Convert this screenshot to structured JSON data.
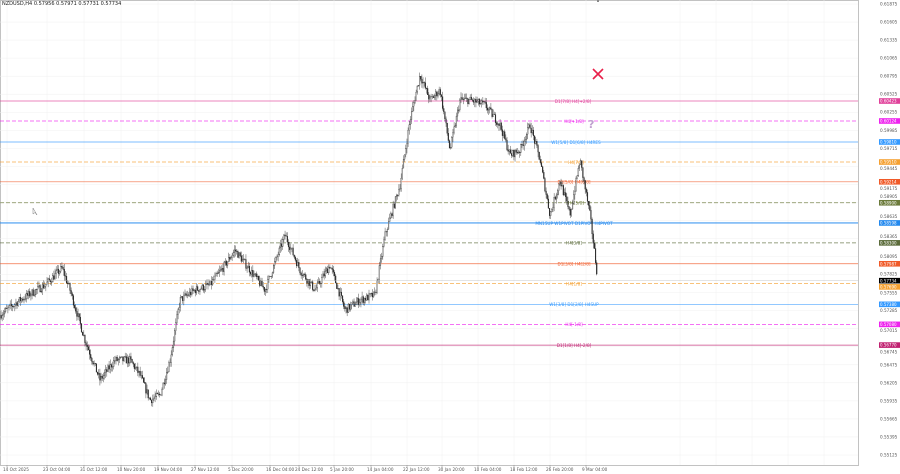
{
  "header": {
    "title": "NZDUSD,H4 0.57956 0.57971 0.57731 0.57734"
  },
  "chart_data": {
    "type": "candlestick",
    "symbol": "NZDUSD",
    "timeframe": "H4",
    "ohlc_last": {
      "open": 0.57956,
      "high": 0.57971,
      "low": 0.57731,
      "close": 0.57734
    },
    "ylim": [
      0.55125,
      0.61875
    ],
    "y_ticks": [
      "0.61875",
      "0.61605",
      "0.61335",
      "0.61065",
      "0.60795",
      "0.60525",
      "0.60255",
      "0.59985",
      "0.59715",
      "0.59445",
      "0.59175",
      "0.58905",
      "0.58635",
      "0.58365",
      "0.58095",
      "0.57825",
      "0.57555",
      "0.57285",
      "0.57015",
      "0.56745",
      "0.56475",
      "0.56205",
      "0.55935",
      "0.55665",
      "0.55395",
      "0.55125"
    ],
    "x_ticks": [
      "14 Oct 2025",
      "23 Oct 04:00",
      "31 Oct 12:00",
      "10 Nov 20:00",
      "19 Nov 04:00",
      "27 Nov 12:00",
      "5 Dec 20:00",
      "16 Dec 04:00",
      "24 Dec 12:00",
      "5 Jan 20:00",
      "14 Jan 04:00",
      "22 Jan 12:00",
      "30 Jan 20:00",
      "10 Feb 04:00",
      "18 Feb 12:00",
      "26 Feb 20:00",
      "9 Mar 04:00"
    ],
    "approx_close_path": [
      0.57219,
      0.57444,
      0.57668,
      0.57923,
      0.57594,
      0.56845,
      0.56246,
      0.56545,
      0.56545,
      0.56321,
      0.55947,
      0.56022,
      0.56545,
      0.57444,
      0.57594,
      0.57668,
      0.57968,
      0.58192,
      0.57893,
      0.57594,
      0.58417,
      0.57893,
      0.57594,
      0.57968,
      0.57294,
      0.57444,
      0.57519,
      0.58417,
      0.59165,
      0.60138,
      0.60812,
      0.60438,
      0.60588,
      0.59689,
      0.60438,
      0.60438,
      0.60363,
      0.60064,
      0.59615,
      0.59689,
      0.60064,
      0.5954,
      0.58716,
      0.5924,
      0.58716,
      0.5954,
      0.58716,
      0.57734
    ],
    "current_price": {
      "value": "0.57734",
      "color": "#000000"
    },
    "levels": [
      {
        "label": "D1[7/8] H4[+2/8]",
        "price": "0.60423",
        "color": "#e0409a",
        "style": "solid"
      },
      {
        "label": "H4[+1/8]",
        "price": "0.60124",
        "color": "#ee22ee",
        "style": "dashed"
      },
      {
        "label": "W1[5/8] D1[6/8] H4RES",
        "price": "0.59810",
        "color": "#3399ff",
        "style": "solid"
      },
      {
        "label": "H4[7/8]",
        "price": "0.59510",
        "color": "#f5a030",
        "style": "dashed"
      },
      {
        "label": "D1[5/8] H4[6/8]",
        "price": "0.59214",
        "color": "#f05a28",
        "style": "solid"
      },
      {
        "label": "H4[5/8]",
        "price": "0.58900",
        "color": "#6b7a3a",
        "style": "dashed"
      },
      {
        "label": "MN1SUP W1PIVOT D1PIVOT H4PIVOT",
        "price": "0.58598",
        "color": "#2288ee",
        "style": "solid"
      },
      {
        "label": "H4[3/8]",
        "price": "0.58300",
        "color": "#5b6b3a",
        "style": "dashed"
      },
      {
        "label": "D1[3/8] H4[2/8]",
        "price": "0.57987",
        "color": "#f05a28",
        "style": "solid"
      },
      {
        "label": "H4[1/8]",
        "price": "0.57690",
        "color": "#f5a030",
        "style": "dashed"
      },
      {
        "label": "W1[3/8] D1[2/8] H4SUP",
        "price": "0.57380",
        "color": "#3399ff",
        "style": "solid"
      },
      {
        "label": "H4[-1/8]",
        "price": "0.57080",
        "color": "#ee22ee",
        "style": "dashed"
      },
      {
        "label": "D1[1/8] H4[-2/8]",
        "price": "0.56770",
        "color": "#c02070",
        "style": "solid"
      }
    ],
    "markers": [
      {
        "icon": "cross-icon",
        "color": "#e8204a"
      },
      {
        "icon": "question-mark-icon",
        "color": "#c0a0d0"
      }
    ],
    "grid": true
  }
}
